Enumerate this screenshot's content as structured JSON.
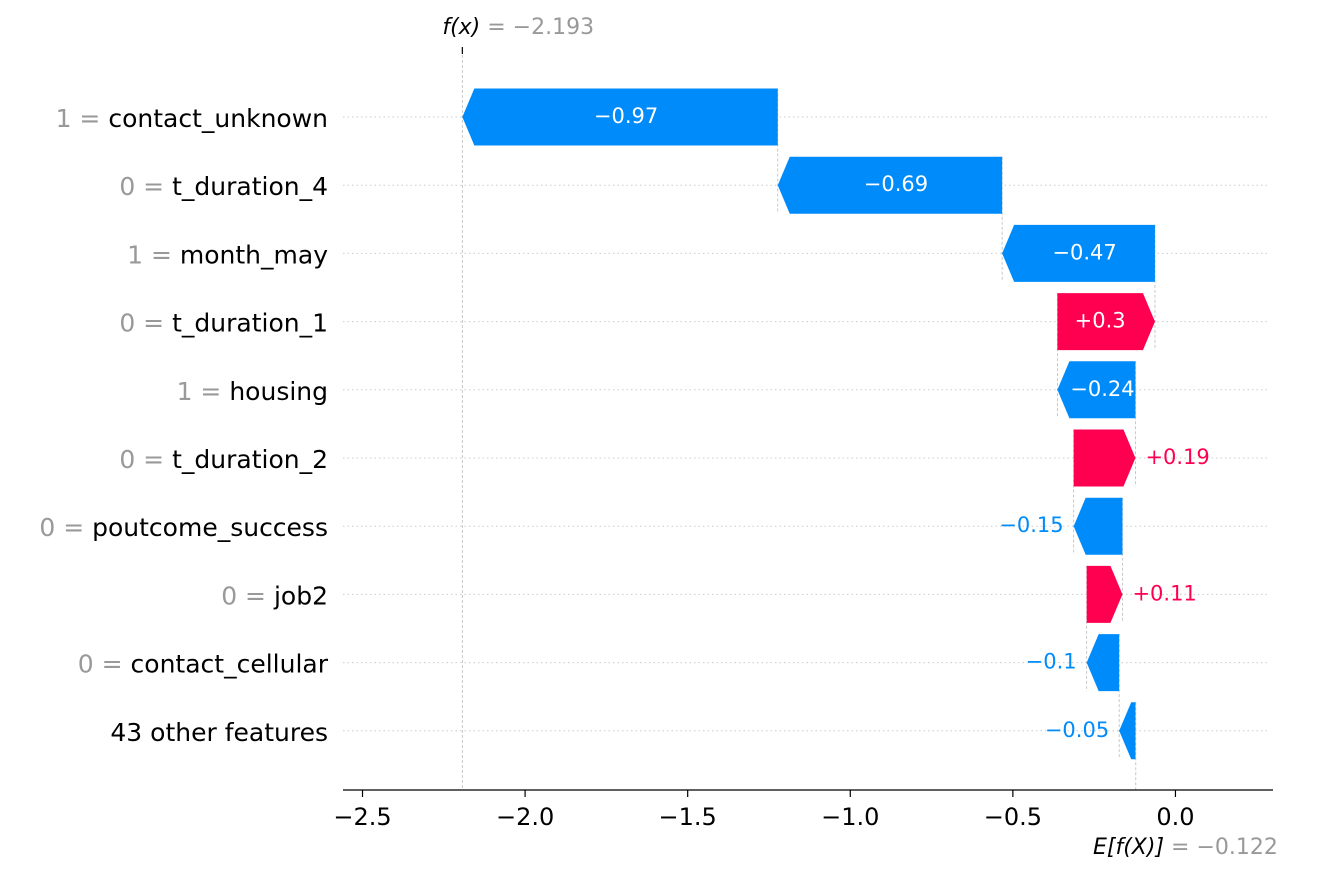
{
  "chart_data": {
    "type": "waterfall",
    "base_value": -0.122,
    "output_value": -2.193,
    "base_label_prefix": "E[f(X)]",
    "base_label_value": "= −0.122",
    "output_label_prefix": "f(x)",
    "output_label_value": "= −2.193",
    "xlim": [
      -2.56,
      0.3
    ],
    "xticks": [
      -2.5,
      -2.0,
      -1.5,
      -1.0,
      -0.5,
      0.0
    ],
    "xtick_labels": [
      "−2.5",
      "−2.0",
      "−1.5",
      "−1.0",
      "−0.5",
      "0.0"
    ],
    "features": [
      {
        "value": "1 =",
        "name": "contact_unknown",
        "shap": -0.97,
        "label": "−0.97"
      },
      {
        "value": "0 =",
        "name": "t_duration_4",
        "shap": -0.69,
        "label": "−0.69"
      },
      {
        "value": "1 =",
        "name": "month_may",
        "shap": -0.47,
        "label": "−0.47"
      },
      {
        "value": "0 =",
        "name": "t_duration_1",
        "shap": 0.3,
        "label": "+0.3"
      },
      {
        "value": "1 =",
        "name": "housing",
        "shap": -0.24,
        "label": "−0.24"
      },
      {
        "value": "0 =",
        "name": "t_duration_2",
        "shap": 0.19,
        "label": "+0.19"
      },
      {
        "value": "0 =",
        "name": "poutcome_success",
        "shap": -0.15,
        "label": "−0.15"
      },
      {
        "value": "0 =",
        "name": "job2",
        "shap": 0.11,
        "label": "+0.11"
      },
      {
        "value": "0 =",
        "name": "contact_cellular",
        "shap": -0.1,
        "label": "−0.1"
      },
      {
        "value": "",
        "name": "43 other features",
        "shap": -0.05,
        "label": "−0.05"
      }
    ],
    "colors": {
      "positive": "#ff0051",
      "negative": "#008bfb",
      "value_gray": "#999999",
      "text": "#000000",
      "grid": "#cccccc"
    }
  }
}
